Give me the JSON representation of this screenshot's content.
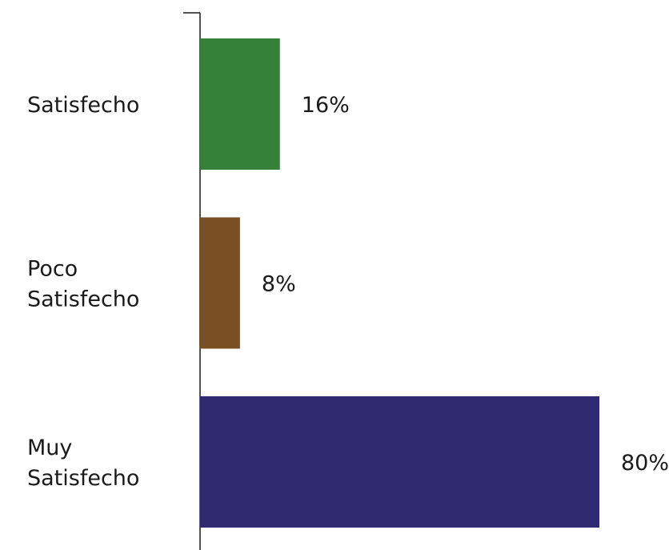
{
  "chart_data": {
    "type": "bar",
    "orientation": "horizontal",
    "categories": [
      [
        "Satisfecho"
      ],
      [
        "Poco",
        "Satisfecho"
      ],
      [
        "Muy",
        "Satisfecho"
      ]
    ],
    "values": [
      16,
      8,
      80
    ],
    "value_labels": [
      "16%",
      "8%",
      "80%"
    ],
    "colors": [
      "#35813a",
      "#7b4f24",
      "#302a73"
    ],
    "title": "",
    "xlabel": "",
    "ylabel": "",
    "xlim": [
      0,
      80
    ],
    "grid": false,
    "legend": "none"
  }
}
